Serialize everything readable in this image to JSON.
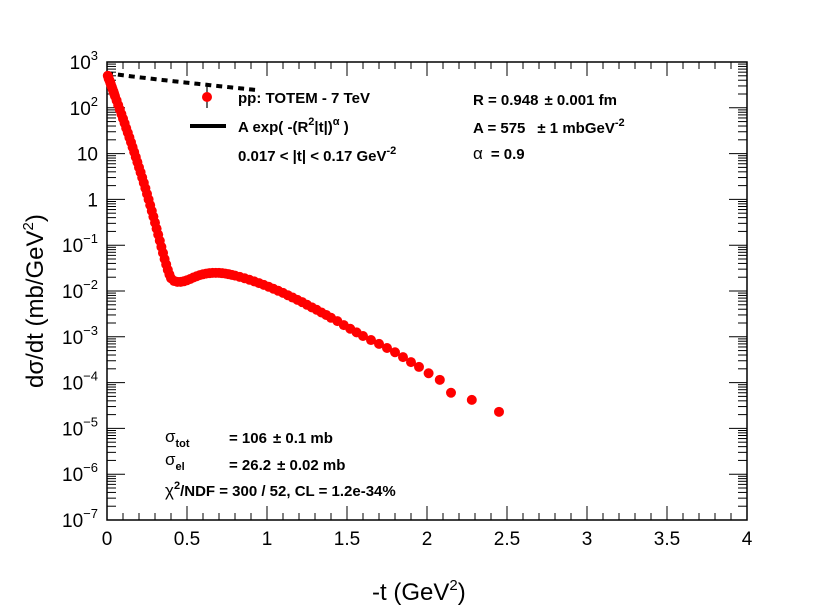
{
  "chart_data": {
    "type": "scatter",
    "xlabel": "-t (GeV",
    "xlabel_sup": "2",
    "xlabel_end": ")",
    "ylabel": "dσ/dt (mb/GeV",
    "ylabel_sup": "2",
    "ylabel_end": ")",
    "xlim": [
      0,
      4
    ],
    "ylim_log10": [
      -7,
      3
    ],
    "x_ticks": [
      {
        "value": 0,
        "label": "0"
      },
      {
        "value": 0.5,
        "label": "0.5"
      },
      {
        "value": 1,
        "label": "1"
      },
      {
        "value": 1.5,
        "label": "1.5"
      },
      {
        "value": 2,
        "label": "2"
      },
      {
        "value": 2.5,
        "label": "2.5"
      },
      {
        "value": 3,
        "label": "3"
      },
      {
        "value": 3.5,
        "label": "3.5"
      },
      {
        "value": 4,
        "label": "4"
      }
    ],
    "y_ticks": [
      {
        "exp": 3,
        "base": "10",
        "sup": "3"
      },
      {
        "exp": 2,
        "base": "10",
        "sup": "2"
      },
      {
        "exp": 1,
        "base": "10",
        "sup": ""
      },
      {
        "exp": 0,
        "base": "1",
        "sup": ""
      },
      {
        "exp": -1,
        "base": "10",
        "sup": "−1"
      },
      {
        "exp": -2,
        "base": "10",
        "sup": "−2"
      },
      {
        "exp": -3,
        "base": "10",
        "sup": "−3"
      },
      {
        "exp": -4,
        "base": "10",
        "sup": "−4"
      },
      {
        "exp": -5,
        "base": "10",
        "sup": "−5"
      },
      {
        "exp": -6,
        "base": "10",
        "sup": "−6"
      },
      {
        "exp": -7,
        "base": "10",
        "sup": "−7"
      }
    ],
    "series": [
      {
        "name": "pp: TOTEM - 7 TeV",
        "kind": "data",
        "color": "#ff0000",
        "points": [
          [
            0.005,
            500
          ],
          [
            0.01,
            440
          ],
          [
            0.015,
            400
          ],
          [
            0.02,
            360
          ],
          [
            0.025,
            320
          ],
          [
            0.03,
            285
          ],
          [
            0.035,
            255
          ],
          [
            0.04,
            228
          ],
          [
            0.045,
            203
          ],
          [
            0.05,
            180
          ],
          [
            0.06,
            145
          ],
          [
            0.07,
            115
          ],
          [
            0.08,
            92
          ],
          [
            0.09,
            73
          ],
          [
            0.1,
            58
          ],
          [
            0.11,
            46
          ],
          [
            0.12,
            36
          ],
          [
            0.13,
            28.5
          ],
          [
            0.14,
            22.5
          ],
          [
            0.15,
            17.7
          ],
          [
            0.16,
            13.8
          ],
          [
            0.17,
            10.8
          ],
          [
            0.18,
            8.4
          ],
          [
            0.19,
            6.5
          ],
          [
            0.2,
            5.0
          ],
          [
            0.21,
            3.9
          ],
          [
            0.22,
            3.0
          ],
          [
            0.23,
            2.3
          ],
          [
            0.24,
            1.75
          ],
          [
            0.25,
            1.32
          ],
          [
            0.26,
            1.0
          ],
          [
            0.27,
            0.75
          ],
          [
            0.28,
            0.56
          ],
          [
            0.29,
            0.42
          ],
          [
            0.3,
            0.31
          ],
          [
            0.31,
            0.23
          ],
          [
            0.32,
            0.17
          ],
          [
            0.33,
            0.125
          ],
          [
            0.34,
            0.092
          ],
          [
            0.35,
            0.068
          ],
          [
            0.36,
            0.05
          ],
          [
            0.37,
            0.038
          ],
          [
            0.38,
            0.029
          ],
          [
            0.39,
            0.023
          ],
          [
            0.4,
            0.019
          ],
          [
            0.42,
            0.0165
          ],
          [
            0.44,
            0.0158
          ],
          [
            0.46,
            0.0158
          ],
          [
            0.48,
            0.0163
          ],
          [
            0.5,
            0.0172
          ],
          [
            0.52,
            0.0183
          ],
          [
            0.54,
            0.0197
          ],
          [
            0.56,
            0.021
          ],
          [
            0.58,
            0.0222
          ],
          [
            0.6,
            0.0232
          ],
          [
            0.62,
            0.024
          ],
          [
            0.64,
            0.0245
          ],
          [
            0.66,
            0.0248
          ],
          [
            0.68,
            0.0249
          ],
          [
            0.7,
            0.0248
          ],
          [
            0.72,
            0.0245
          ],
          [
            0.74,
            0.024
          ],
          [
            0.76,
            0.0233
          ],
          [
            0.78,
            0.0225
          ],
          [
            0.8,
            0.0217
          ],
          [
            0.83,
            0.0203
          ],
          [
            0.86,
            0.019
          ],
          [
            0.89,
            0.0176
          ],
          [
            0.92,
            0.0162
          ],
          [
            0.95,
            0.0149
          ],
          [
            0.98,
            0.0136
          ],
          [
            1.01,
            0.0124
          ],
          [
            1.04,
            0.0112
          ],
          [
            1.07,
            0.0101
          ],
          [
            1.1,
            0.0091
          ],
          [
            1.13,
            0.0081
          ],
          [
            1.16,
            0.0072
          ],
          [
            1.19,
            0.0064
          ],
          [
            1.22,
            0.0057
          ],
          [
            1.25,
            0.005
          ],
          [
            1.28,
            0.0044
          ],
          [
            1.31,
            0.0039
          ],
          [
            1.34,
            0.0034
          ],
          [
            1.37,
            0.003
          ],
          [
            1.4,
            0.0026
          ],
          [
            1.44,
            0.0022
          ],
          [
            1.48,
            0.0018
          ],
          [
            1.52,
            0.0015
          ],
          [
            1.56,
            0.00125
          ],
          [
            1.6,
            0.00104
          ],
          [
            1.65,
            0.00085
          ],
          [
            1.7,
            0.0007
          ],
          [
            1.75,
            0.00057
          ],
          [
            1.8,
            0.00046
          ],
          [
            1.85,
            0.00036
          ],
          [
            1.9,
            0.00028
          ],
          [
            1.95,
            0.00022
          ],
          [
            2.01,
            0.00016
          ],
          [
            2.08,
            0.000115
          ],
          [
            2.15,
            6e-05
          ],
          [
            2.28,
            4.2e-05
          ],
          [
            2.45,
            2.3e-05
          ]
        ]
      },
      {
        "name": "A exp( -(R²|t|)^α )",
        "kind": "fit",
        "color": "#000000",
        "A": 575,
        "R": 0.948,
        "alpha": 0.9,
        "t_range": [
          0.0,
          0.94
        ]
      }
    ],
    "legend": {
      "position": "top-left",
      "data_entry": "pp: TOTEM - 7 TeV",
      "fit_entry_prefix": "A exp( -(R",
      "fit_entry_sup": "2",
      "fit_entry_mid": "|t|)",
      "fit_entry_sup2": "α",
      "fit_entry_end": " )",
      "range_prefix": "0.017 < |t| < 0.17 GeV",
      "range_sup": "-2"
    },
    "fit_params": {
      "R_label": "R = 0.948",
      "R_err": "± 0.001 fm",
      "A_label": "A = 575",
      "A_err": "± 1 mbGeV",
      "A_err_sup": "-2",
      "alpha_label": "α",
      "alpha_value": "= 0.9"
    },
    "cross_sections": {
      "sigma_tot_sym": "σ",
      "sigma_tot_sub": "tot",
      "sigma_tot_val": "= 106",
      "sigma_tot_err": "± 0.1 mb",
      "sigma_el_sym": "σ",
      "sigma_el_sub": "el",
      "sigma_el_val": "= 26.2",
      "sigma_el_err": "± 0.02 mb",
      "chi2_sym": "χ",
      "chi2_sup": "2",
      "chi2_text": "/NDF = 300 / 52,  CL = 1.2e-34%"
    }
  }
}
